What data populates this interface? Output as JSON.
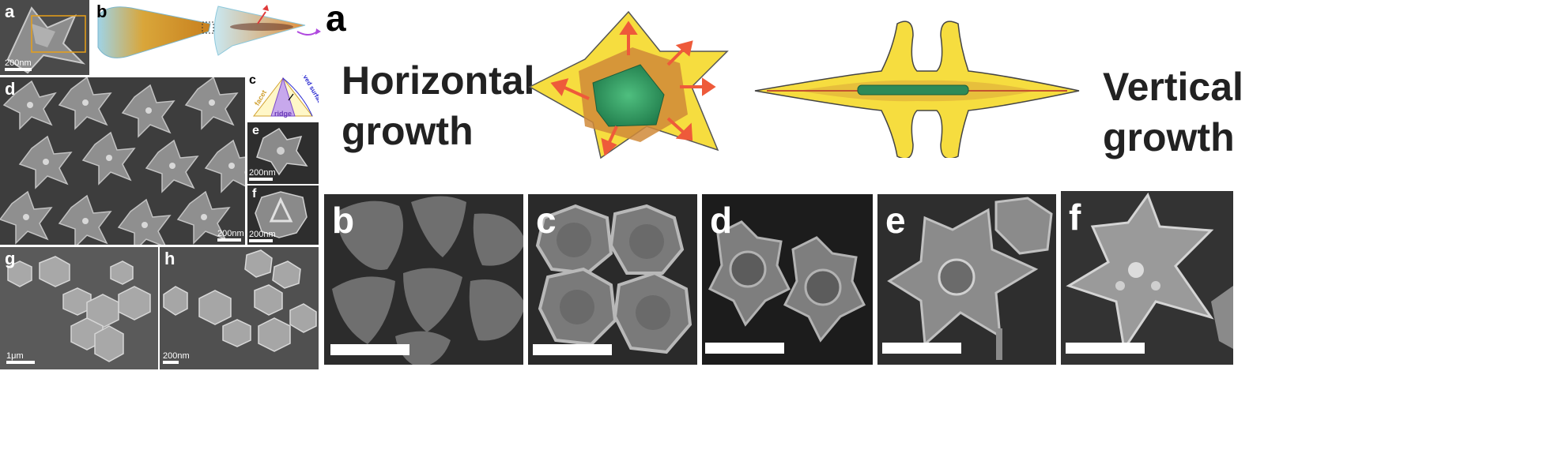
{
  "left_figure": {
    "labels": {
      "a": "a",
      "b": "b",
      "c": "c",
      "d": "d",
      "e": "e",
      "f": "f",
      "g": "g",
      "h": "h"
    },
    "scale_bars": {
      "a": "200nm",
      "d": "200nm",
      "e": "200nm",
      "f": "200nm",
      "g": "1μm",
      "h": "200nm"
    },
    "panel_c": {
      "facet": "facet",
      "ridge": "ridge",
      "curved_surface": "curved surface"
    }
  },
  "right_figure": {
    "label_a": "a",
    "horizontal_line1": "Horizontal",
    "horizontal_line2": "growth",
    "vertical_line1": "Vertical",
    "vertical_line2": "growth",
    "panel_labels": [
      "b",
      "c",
      "d",
      "e",
      "f"
    ]
  },
  "colors": {
    "arrow": "#ef5b3b",
    "star_fill": "#f4dc3c",
    "core_green": "#3b9e6a",
    "sem_bg": "#3a3a3a"
  }
}
